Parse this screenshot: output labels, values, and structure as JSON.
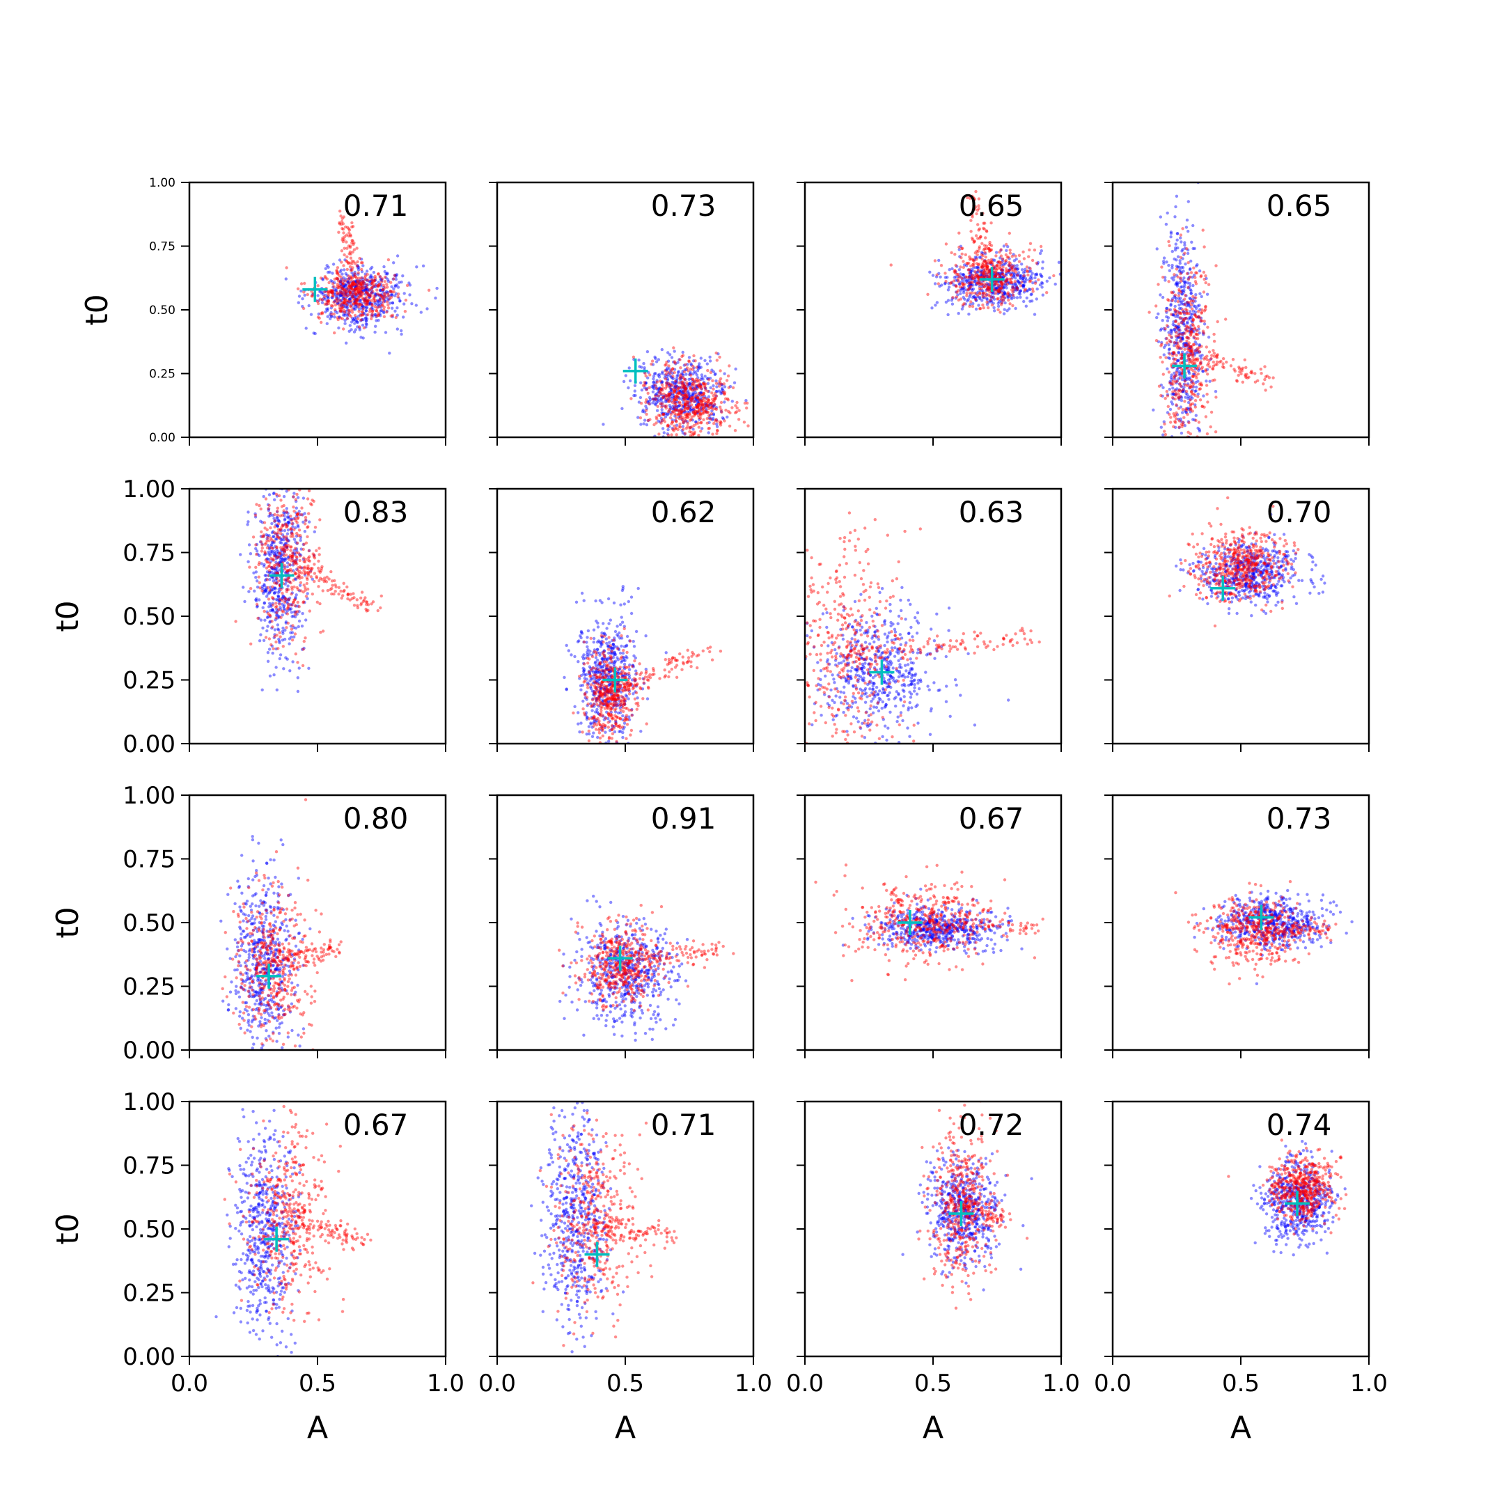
{
  "figure": {
    "background": "#ffffff"
  },
  "colors": {
    "series_a": "#0000ff",
    "series_b": "#ff0000",
    "marker": "#00bfbf"
  },
  "chart_data": {
    "type": "scatter",
    "grid": false,
    "legend": "none",
    "xlim": [
      0,
      1
    ],
    "ylim": [
      0,
      1
    ],
    "xlabel": "A",
    "ylabel": "t0",
    "xticks": [
      "0.0",
      "0.5",
      "1.0"
    ],
    "yticks": [
      "0.00",
      "0.25",
      "0.50",
      "0.75",
      "1.00"
    ],
    "panels": [
      {
        "score": "0.71",
        "marker": [
          0.49,
          0.58
        ],
        "blue": {
          "cx": 0.66,
          "cy": 0.55,
          "sx": 0.09,
          "sy": 0.06,
          "n": 520
        },
        "red": {
          "cx": 0.65,
          "cy": 0.56,
          "sx": 0.08,
          "sy": 0.05,
          "n": 480,
          "tail": [
            0.6,
            0.86
          ]
        }
      },
      {
        "score": "0.73",
        "marker": [
          0.54,
          0.26
        ],
        "blue": {
          "cx": 0.72,
          "cy": 0.17,
          "sx": 0.09,
          "sy": 0.07,
          "n": 520
        },
        "red": {
          "cx": 0.75,
          "cy": 0.14,
          "sx": 0.08,
          "sy": 0.07,
          "n": 520
        }
      },
      {
        "score": "0.65",
        "marker": [
          0.73,
          0.62
        ],
        "blue": {
          "cx": 0.73,
          "cy": 0.61,
          "sx": 0.1,
          "sy": 0.05,
          "n": 500
        },
        "red": {
          "cx": 0.72,
          "cy": 0.63,
          "sx": 0.08,
          "sy": 0.06,
          "n": 460,
          "tail": [
            0.65,
            0.95
          ]
        }
      },
      {
        "score": "0.65",
        "marker": [
          0.28,
          0.28
        ],
        "blue": {
          "cx": 0.27,
          "cy": 0.4,
          "sx": 0.04,
          "sy": 0.22,
          "n": 520
        },
        "red": {
          "cx": 0.29,
          "cy": 0.33,
          "sx": 0.05,
          "sy": 0.18,
          "n": 480,
          "tail": [
            0.62,
            0.22
          ]
        }
      },
      {
        "score": "0.83",
        "marker": [
          0.36,
          0.66
        ],
        "blue": {
          "cx": 0.35,
          "cy": 0.68,
          "sx": 0.05,
          "sy": 0.17,
          "n": 520
        },
        "red": {
          "cx": 0.38,
          "cy": 0.72,
          "sx": 0.06,
          "sy": 0.16,
          "n": 480,
          "tail": [
            0.72,
            0.53
          ]
        }
      },
      {
        "score": "0.62",
        "marker": [
          0.46,
          0.25
        ],
        "blue": {
          "cx": 0.43,
          "cy": 0.26,
          "sx": 0.06,
          "sy": 0.12,
          "n": 520
        },
        "red": {
          "cx": 0.44,
          "cy": 0.2,
          "sx": 0.05,
          "sy": 0.09,
          "n": 520,
          "tail": [
            0.85,
            0.37
          ]
        }
      },
      {
        "score": "0.63",
        "marker": [
          0.3,
          0.28
        ],
        "blue": {
          "cx": 0.28,
          "cy": 0.28,
          "sx": 0.12,
          "sy": 0.12,
          "n": 520
        },
        "red": {
          "cx": 0.15,
          "cy": 0.35,
          "sx": 0.12,
          "sy": 0.24,
          "n": 520,
          "tail": [
            0.9,
            0.42
          ]
        }
      },
      {
        "score": "0.70",
        "marker": [
          0.43,
          0.61
        ],
        "blue": {
          "cx": 0.53,
          "cy": 0.67,
          "sx": 0.1,
          "sy": 0.06,
          "n": 520
        },
        "red": {
          "cx": 0.5,
          "cy": 0.7,
          "sx": 0.09,
          "sy": 0.07,
          "n": 480
        }
      },
      {
        "score": "0.80",
        "marker": [
          0.31,
          0.29
        ],
        "blue": {
          "cx": 0.29,
          "cy": 0.35,
          "sx": 0.06,
          "sy": 0.17,
          "n": 520
        },
        "red": {
          "cx": 0.32,
          "cy": 0.34,
          "sx": 0.07,
          "sy": 0.15,
          "n": 480,
          "tail": [
            0.58,
            0.4
          ]
        }
      },
      {
        "score": "0.91",
        "marker": [
          0.48,
          0.36
        ],
        "blue": {
          "cx": 0.5,
          "cy": 0.3,
          "sx": 0.1,
          "sy": 0.1,
          "n": 520
        },
        "red": {
          "cx": 0.48,
          "cy": 0.33,
          "sx": 0.08,
          "sy": 0.08,
          "n": 480,
          "tail": [
            0.88,
            0.4
          ]
        }
      },
      {
        "score": "0.67",
        "marker": [
          0.41,
          0.5
        ],
        "blue": {
          "cx": 0.52,
          "cy": 0.48,
          "sx": 0.12,
          "sy": 0.04,
          "n": 520
        },
        "red": {
          "cx": 0.45,
          "cy": 0.5,
          "sx": 0.14,
          "sy": 0.08,
          "n": 480,
          "tail": [
            0.9,
            0.48
          ]
        }
      },
      {
        "score": "0.73",
        "marker": [
          0.58,
          0.52
        ],
        "blue": {
          "cx": 0.62,
          "cy": 0.5,
          "sx": 0.1,
          "sy": 0.05,
          "n": 520
        },
        "red": {
          "cx": 0.55,
          "cy": 0.47,
          "sx": 0.09,
          "sy": 0.07,
          "n": 480,
          "tail": [
            0.85,
            0.47
          ]
        }
      },
      {
        "score": "0.67",
        "marker": [
          0.34,
          0.46
        ],
        "blue": {
          "cx": 0.29,
          "cy": 0.5,
          "sx": 0.06,
          "sy": 0.2,
          "n": 520
        },
        "red": {
          "cx": 0.38,
          "cy": 0.55,
          "sx": 0.08,
          "sy": 0.18,
          "n": 480,
          "tail": [
            0.68,
            0.45
          ]
        }
      },
      {
        "score": "0.71",
        "marker": [
          0.39,
          0.4
        ],
        "blue": {
          "cx": 0.31,
          "cy": 0.55,
          "sx": 0.06,
          "sy": 0.22,
          "n": 520
        },
        "red": {
          "cx": 0.38,
          "cy": 0.52,
          "sx": 0.08,
          "sy": 0.2,
          "n": 480,
          "tail": [
            0.68,
            0.47
          ]
        }
      },
      {
        "score": "0.72",
        "marker": [
          0.61,
          0.56
        ],
        "blue": {
          "cx": 0.62,
          "cy": 0.57,
          "sx": 0.07,
          "sy": 0.1,
          "n": 520
        },
        "red": {
          "cx": 0.61,
          "cy": 0.6,
          "sx": 0.06,
          "sy": 0.15,
          "n": 480,
          "tail": [
            0.78,
            0.53
          ]
        }
      },
      {
        "score": "0.74",
        "marker": [
          0.72,
          0.6
        ],
        "blue": {
          "cx": 0.72,
          "cy": 0.61,
          "sx": 0.07,
          "sy": 0.08,
          "n": 520
        },
        "red": {
          "cx": 0.74,
          "cy": 0.66,
          "sx": 0.06,
          "sy": 0.06,
          "n": 480
        }
      }
    ]
  }
}
